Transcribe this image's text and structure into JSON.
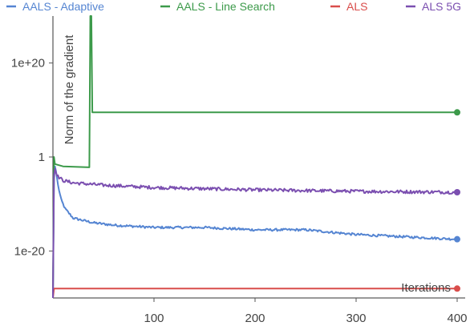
{
  "chart_data": {
    "type": "line",
    "xlabel": "Iterations",
    "ylabel": "Norm of the gradient",
    "y_scale": "log10",
    "xlim": [
      0,
      400
    ],
    "ylim_exponent": [
      -30,
      30
    ],
    "x_ticks": [
      {
        "value": 100,
        "label": "100"
      },
      {
        "value": 200,
        "label": "200"
      },
      {
        "value": 300,
        "label": "300"
      },
      {
        "value": 400,
        "label": "400"
      }
    ],
    "y_ticks": [
      {
        "exponent": 20,
        "label": "1e+20"
      },
      {
        "exponent": 0,
        "label": "1"
      },
      {
        "exponent": -20,
        "label": "1e-20"
      }
    ],
    "legend_position": "top",
    "grid": false,
    "series": [
      {
        "name": "AALS - Adaptive",
        "color": "#5585d2",
        "log10_values": [
          [
            0,
            -30
          ],
          [
            1,
            -5
          ],
          [
            2,
            -2
          ],
          [
            3,
            -3
          ],
          [
            5,
            -6
          ],
          [
            8,
            -9
          ],
          [
            12,
            -11
          ],
          [
            20,
            -13
          ],
          [
            40,
            -14
          ],
          [
            60,
            -14.5
          ],
          [
            100,
            -15
          ],
          [
            150,
            -15
          ],
          [
            200,
            -15.5
          ],
          [
            250,
            -15.5
          ],
          [
            300,
            -16.5
          ],
          [
            350,
            -17
          ],
          [
            400,
            -17.5
          ]
        ],
        "noise": 0.25
      },
      {
        "name": "AALS - Line Search",
        "color": "#3c9a4a",
        "log10_values": [
          [
            0,
            -30
          ],
          [
            1,
            0
          ],
          [
            2,
            -1.5
          ],
          [
            10,
            -2
          ],
          [
            36,
            -2.2
          ],
          [
            37,
            30
          ],
          [
            38,
            30
          ],
          [
            39,
            9.5
          ],
          [
            400,
            9.5
          ]
        ],
        "noise": 0
      },
      {
        "name": "ALS",
        "color": "#d94d4b",
        "log10_values": [
          [
            0,
            -30
          ],
          [
            1,
            -28
          ],
          [
            400,
            -28
          ]
        ],
        "noise": 0
      },
      {
        "name": "ALS 5G",
        "color": "#7b4fb0",
        "log10_values": [
          [
            0,
            -30
          ],
          [
            1,
            -4
          ],
          [
            2,
            -2.5
          ],
          [
            4,
            -4
          ],
          [
            10,
            -5
          ],
          [
            20,
            -5.5
          ],
          [
            50,
            -6
          ],
          [
            100,
            -6.5
          ],
          [
            200,
            -7
          ],
          [
            300,
            -7.3
          ],
          [
            400,
            -7.5
          ]
        ],
        "noise": 0.35
      }
    ]
  }
}
